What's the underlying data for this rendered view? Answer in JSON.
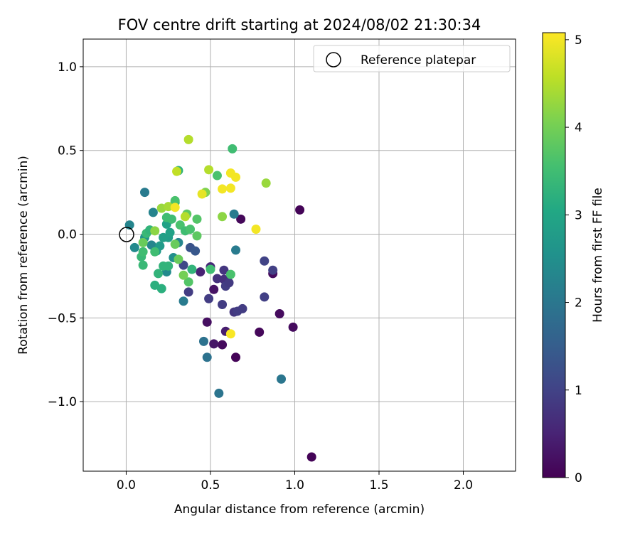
{
  "chart_data": {
    "type": "scatter",
    "title": "FOV centre drift starting at 2024/08/02 21:30:34",
    "xlabel": "Angular distance from reference (arcmin)",
    "ylabel": "Rotation from reference (arcmin)",
    "xlim": [
      -0.255,
      2.31
    ],
    "ylim": [
      -1.415,
      1.165
    ],
    "xticks": [
      0.0,
      0.5,
      1.0,
      1.5,
      2.0
    ],
    "xtick_labels": [
      "0.0",
      "0.5",
      "1.0",
      "1.5",
      "2.0"
    ],
    "yticks": [
      -1.0,
      -0.5,
      0.0,
      0.5,
      1.0
    ],
    "ytick_labels": [
      "−1.0",
      "−0.5",
      "0.0",
      "0.5",
      "1.0"
    ],
    "grid": true,
    "legend": {
      "placement": "top-right",
      "entries": [
        "Reference platepar"
      ]
    },
    "reference_point": {
      "x": 0.0,
      "y": 0.0,
      "marker": "open-circle"
    },
    "colorbar": {
      "label": "Hours from first FF file",
      "range": [
        0,
        5.08
      ],
      "ticks": [
        0,
        1,
        2,
        3,
        4,
        5
      ],
      "tick_labels": [
        "0",
        "1",
        "2",
        "3",
        "4",
        "5"
      ],
      "colormap": "viridis"
    },
    "points": [
      {
        "x": 1.03,
        "y": 0.145,
        "c": 0.05
      },
      {
        "x": 1.1,
        "y": -1.33,
        "c": 0.05
      },
      {
        "x": 0.68,
        "y": 0.09,
        "c": 0.1
      },
      {
        "x": 0.87,
        "y": -0.235,
        "c": 0.15
      },
      {
        "x": 0.91,
        "y": -0.475,
        "c": 0.15
      },
      {
        "x": 0.99,
        "y": -0.555,
        "c": 0.15
      },
      {
        "x": 0.79,
        "y": -0.585,
        "c": 0.1
      },
      {
        "x": 0.65,
        "y": -0.735,
        "c": 0.05
      },
      {
        "x": 0.57,
        "y": -0.66,
        "c": 0.15
      },
      {
        "x": 0.52,
        "y": -0.655,
        "c": 0.3
      },
      {
        "x": 0.48,
        "y": -0.525,
        "c": 0.2
      },
      {
        "x": 0.52,
        "y": -0.33,
        "c": 0.25
      },
      {
        "x": 0.44,
        "y": -0.225,
        "c": 0.5
      },
      {
        "x": 0.5,
        "y": -0.195,
        "c": 0.6
      },
      {
        "x": 0.54,
        "y": -0.265,
        "c": 0.7
      },
      {
        "x": 0.58,
        "y": -0.215,
        "c": 0.8
      },
      {
        "x": 0.58,
        "y": -0.27,
        "c": 0.7
      },
      {
        "x": 0.59,
        "y": -0.31,
        "c": 0.9
      },
      {
        "x": 0.61,
        "y": -0.29,
        "c": 0.85
      },
      {
        "x": 0.49,
        "y": -0.385,
        "c": 0.9
      },
      {
        "x": 0.57,
        "y": -0.42,
        "c": 0.9
      },
      {
        "x": 0.64,
        "y": -0.465,
        "c": 0.8
      },
      {
        "x": 0.66,
        "y": -0.46,
        "c": 0.9
      },
      {
        "x": 0.69,
        "y": -0.445,
        "c": 0.9
      },
      {
        "x": 0.82,
        "y": -0.375,
        "c": 0.95
      },
      {
        "x": 0.82,
        "y": -0.16,
        "c": 1.0
      },
      {
        "x": 0.87,
        "y": -0.215,
        "c": 0.95
      },
      {
        "x": 0.59,
        "y": -0.58,
        "c": 0.4
      },
      {
        "x": 0.37,
        "y": -0.345,
        "c": 0.9
      },
      {
        "x": 0.34,
        "y": -0.185,
        "c": 1.1
      },
      {
        "x": 0.38,
        "y": -0.08,
        "c": 1.3
      },
      {
        "x": 0.41,
        "y": -0.1,
        "c": 1.4
      },
      {
        "x": 0.46,
        "y": -0.64,
        "c": 1.9
      },
      {
        "x": 0.48,
        "y": -0.735,
        "c": 1.9
      },
      {
        "x": 0.55,
        "y": -0.95,
        "c": 1.95
      },
      {
        "x": 0.92,
        "y": -0.865,
        "c": 2.0
      },
      {
        "x": 0.34,
        "y": -0.4,
        "c": 2.1
      },
      {
        "x": 0.65,
        "y": -0.095,
        "c": 2.1
      },
      {
        "x": 0.64,
        "y": 0.12,
        "c": 2.1
      },
      {
        "x": 0.11,
        "y": 0.25,
        "c": 2.1
      },
      {
        "x": 0.16,
        "y": 0.13,
        "c": 2.25
      },
      {
        "x": 0.02,
        "y": 0.055,
        "c": 2.3
      },
      {
        "x": 0.05,
        "y": -0.08,
        "c": 2.4
      },
      {
        "x": 0.15,
        "y": -0.065,
        "c": 2.3
      },
      {
        "x": 0.24,
        "y": -0.225,
        "c": 2.4
      },
      {
        "x": 0.28,
        "y": -0.14,
        "c": 2.5
      },
      {
        "x": 0.31,
        "y": -0.05,
        "c": 2.3
      },
      {
        "x": 0.11,
        "y": -0.02,
        "c": 2.6
      },
      {
        "x": 0.18,
        "y": -0.1,
        "c": 2.7
      },
      {
        "x": 0.2,
        "y": -0.07,
        "c": 2.75
      },
      {
        "x": 0.25,
        "y": -0.02,
        "c": 2.8
      },
      {
        "x": 0.22,
        "y": -0.02,
        "c": 2.85
      },
      {
        "x": 0.24,
        "y": 0.06,
        "c": 2.9
      },
      {
        "x": 0.26,
        "y": 0.01,
        "c": 2.9
      },
      {
        "x": 0.29,
        "y": 0.19,
        "c": 3.0
      },
      {
        "x": 0.31,
        "y": 0.38,
        "c": 3.2
      },
      {
        "x": 0.17,
        "y": -0.305,
        "c": 3.2
      },
      {
        "x": 0.21,
        "y": -0.325,
        "c": 3.2
      },
      {
        "x": 0.19,
        "y": -0.235,
        "c": 3.3
      },
      {
        "x": 0.22,
        "y": -0.19,
        "c": 3.3
      },
      {
        "x": 0.25,
        "y": -0.19,
        "c": 3.3
      },
      {
        "x": 0.39,
        "y": -0.21,
        "c": 3.3
      },
      {
        "x": 0.1,
        "y": -0.185,
        "c": 3.4
      },
      {
        "x": 0.09,
        "y": -0.135,
        "c": 3.4
      },
      {
        "x": 0.1,
        "y": -0.105,
        "c": 3.5
      },
      {
        "x": 0.17,
        "y": -0.105,
        "c": 3.5
      },
      {
        "x": 0.12,
        "y": 0.005,
        "c": 3.4
      },
      {
        "x": 0.14,
        "y": 0.025,
        "c": 3.3
      },
      {
        "x": 0.24,
        "y": 0.1,
        "c": 3.5
      },
      {
        "x": 0.27,
        "y": 0.09,
        "c": 3.5
      },
      {
        "x": 0.32,
        "y": 0.055,
        "c": 3.6
      },
      {
        "x": 0.35,
        "y": 0.02,
        "c": 3.5
      },
      {
        "x": 0.38,
        "y": 0.03,
        "c": 3.6
      },
      {
        "x": 0.42,
        "y": 0.09,
        "c": 3.7
      },
      {
        "x": 0.42,
        "y": -0.01,
        "c": 3.8
      },
      {
        "x": 0.36,
        "y": 0.12,
        "c": 3.8
      },
      {
        "x": 0.29,
        "y": 0.2,
        "c": 3.6
      },
      {
        "x": 0.54,
        "y": 0.35,
        "c": 3.6
      },
      {
        "x": 0.63,
        "y": 0.51,
        "c": 3.5
      },
      {
        "x": 0.62,
        "y": -0.24,
        "c": 3.6
      },
      {
        "x": 0.5,
        "y": -0.21,
        "c": 3.5
      },
      {
        "x": 0.37,
        "y": -0.285,
        "c": 3.7
      },
      {
        "x": 0.34,
        "y": -0.245,
        "c": 4.0
      },
      {
        "x": 0.31,
        "y": -0.15,
        "c": 3.9
      },
      {
        "x": 0.29,
        "y": -0.06,
        "c": 3.9
      },
      {
        "x": 0.1,
        "y": -0.05,
        "c": 3.9
      },
      {
        "x": 0.17,
        "y": 0.02,
        "c": 4.2
      },
      {
        "x": 0.21,
        "y": 0.155,
        "c": 4.3
      },
      {
        "x": 0.25,
        "y": 0.165,
        "c": 4.4
      },
      {
        "x": 0.35,
        "y": 0.105,
        "c": 4.5
      },
      {
        "x": 0.47,
        "y": 0.25,
        "c": 4.1
      },
      {
        "x": 0.57,
        "y": 0.105,
        "c": 4.2
      },
      {
        "x": 0.37,
        "y": 0.565,
        "c": 4.5
      },
      {
        "x": 0.49,
        "y": 0.385,
        "c": 4.5
      },
      {
        "x": 0.3,
        "y": 0.375,
        "c": 4.6
      },
      {
        "x": 0.83,
        "y": 0.305,
        "c": 4.3
      },
      {
        "x": 0.45,
        "y": 0.24,
        "c": 4.9
      },
      {
        "x": 0.29,
        "y": 0.16,
        "c": 5.0
      },
      {
        "x": 0.57,
        "y": 0.27,
        "c": 5.0
      },
      {
        "x": 0.62,
        "y": 0.275,
        "c": 5.0
      },
      {
        "x": 0.62,
        "y": 0.365,
        "c": 5.0
      },
      {
        "x": 0.65,
        "y": 0.34,
        "c": 5.0
      },
      {
        "x": 0.77,
        "y": 0.03,
        "c": 5.0
      },
      {
        "x": 0.62,
        "y": -0.595,
        "c": 5.05
      }
    ]
  }
}
